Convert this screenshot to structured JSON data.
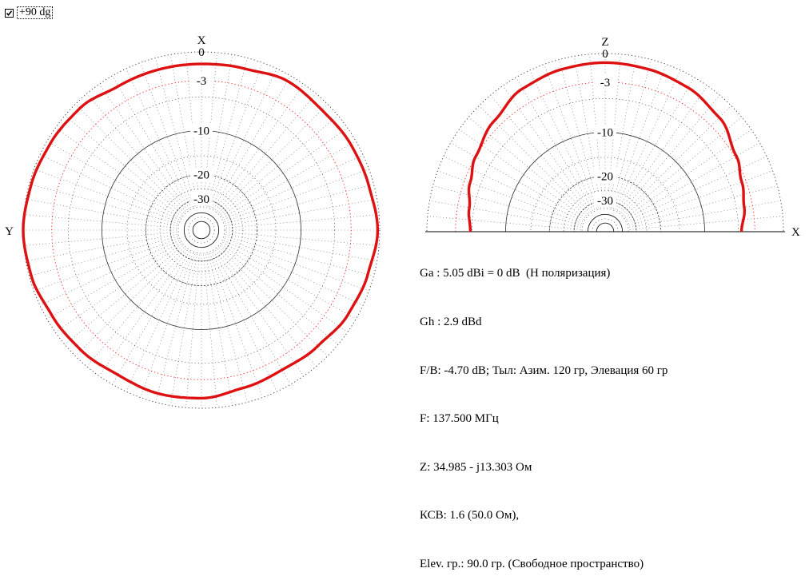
{
  "checkbox": {
    "label": "+90 dg",
    "checked": true
  },
  "info": {
    "lines": [
      "Ga : 5.05 dBi = 0 dB  (H поляризация)",
      "Gh : 2.9 dBd",
      "F/B: -4.70 dB; Тыл: Азим. 120 гр, Элевация 60 гр",
      "F: 137.500 МГц",
      "Z: 34.985 - j13.303 Ом",
      "КСВ: 1.6 (50.0 Ом),",
      "Elev. гр.: 90.0 гр. (Свободное пространство)"
    ]
  },
  "colors": {
    "pattern": "#dd1111",
    "grid_ring": "#000000",
    "ref_ring": "#ff2222"
  },
  "chart_data": [
    {
      "type": "polar",
      "top_label": "X",
      "side_label": "Y",
      "ring_labels": [
        "0",
        "-3",
        "-10",
        "-20",
        "-30"
      ],
      "rings_db": [
        0,
        -3,
        -10,
        -20,
        -30
      ],
      "pattern_gain_db": [
        {
          "angle": 0,
          "db": -1.2
        },
        {
          "angle": 15,
          "db": -1.1
        },
        {
          "angle": 30,
          "db": -0.6
        },
        {
          "angle": 45,
          "db": -0.8
        },
        {
          "angle": 60,
          "db": -0.6
        },
        {
          "angle": 75,
          "db": -0.5
        },
        {
          "angle": 90,
          "db": -0.2
        },
        {
          "angle": 105,
          "db": -0.6
        },
        {
          "angle": 120,
          "db": -0.9
        },
        {
          "angle": 135,
          "db": -1.4
        },
        {
          "angle": 150,
          "db": -1.7
        },
        {
          "angle": 165,
          "db": -1.5
        },
        {
          "angle": 180,
          "db": -1.0
        },
        {
          "angle": 195,
          "db": -0.9
        },
        {
          "angle": 210,
          "db": -1.1
        },
        {
          "angle": 225,
          "db": -0.8
        },
        {
          "angle": 240,
          "db": -0.6
        },
        {
          "angle": 255,
          "db": -0.2
        },
        {
          "angle": 270,
          "db": 0.0
        },
        {
          "angle": 285,
          "db": -0.2
        },
        {
          "angle": 300,
          "db": -0.4
        },
        {
          "angle": 315,
          "db": -0.6
        },
        {
          "angle": 330,
          "db": -1.2
        },
        {
          "angle": 345,
          "db": -1.2
        }
      ]
    },
    {
      "type": "polar-half",
      "top_label": "Z",
      "side_label": "X",
      "ring_labels": [
        "0",
        "-3",
        "-10",
        "-20",
        "-30"
      ],
      "rings_db": [
        0,
        -3,
        -10,
        -20,
        -30
      ],
      "pattern_gain_db": [
        {
          "angle": 0,
          "db": -4.8
        },
        {
          "angle": 10,
          "db": -4.4
        },
        {
          "angle": 20,
          "db": -3.7
        },
        {
          "angle": 30,
          "db": -3.0
        },
        {
          "angle": 45,
          "db": -2.2
        },
        {
          "angle": 60,
          "db": -1.3
        },
        {
          "angle": 75,
          "db": -1.0
        },
        {
          "angle": 90,
          "db": -0.9
        },
        {
          "angle": 105,
          "db": -1.0
        },
        {
          "angle": 120,
          "db": -1.2
        },
        {
          "angle": 135,
          "db": -1.7
        },
        {
          "angle": 150,
          "db": -2.8
        },
        {
          "angle": 160,
          "db": -3.5
        },
        {
          "angle": 170,
          "db": -4.0
        },
        {
          "angle": 180,
          "db": -4.6
        }
      ]
    }
  ]
}
